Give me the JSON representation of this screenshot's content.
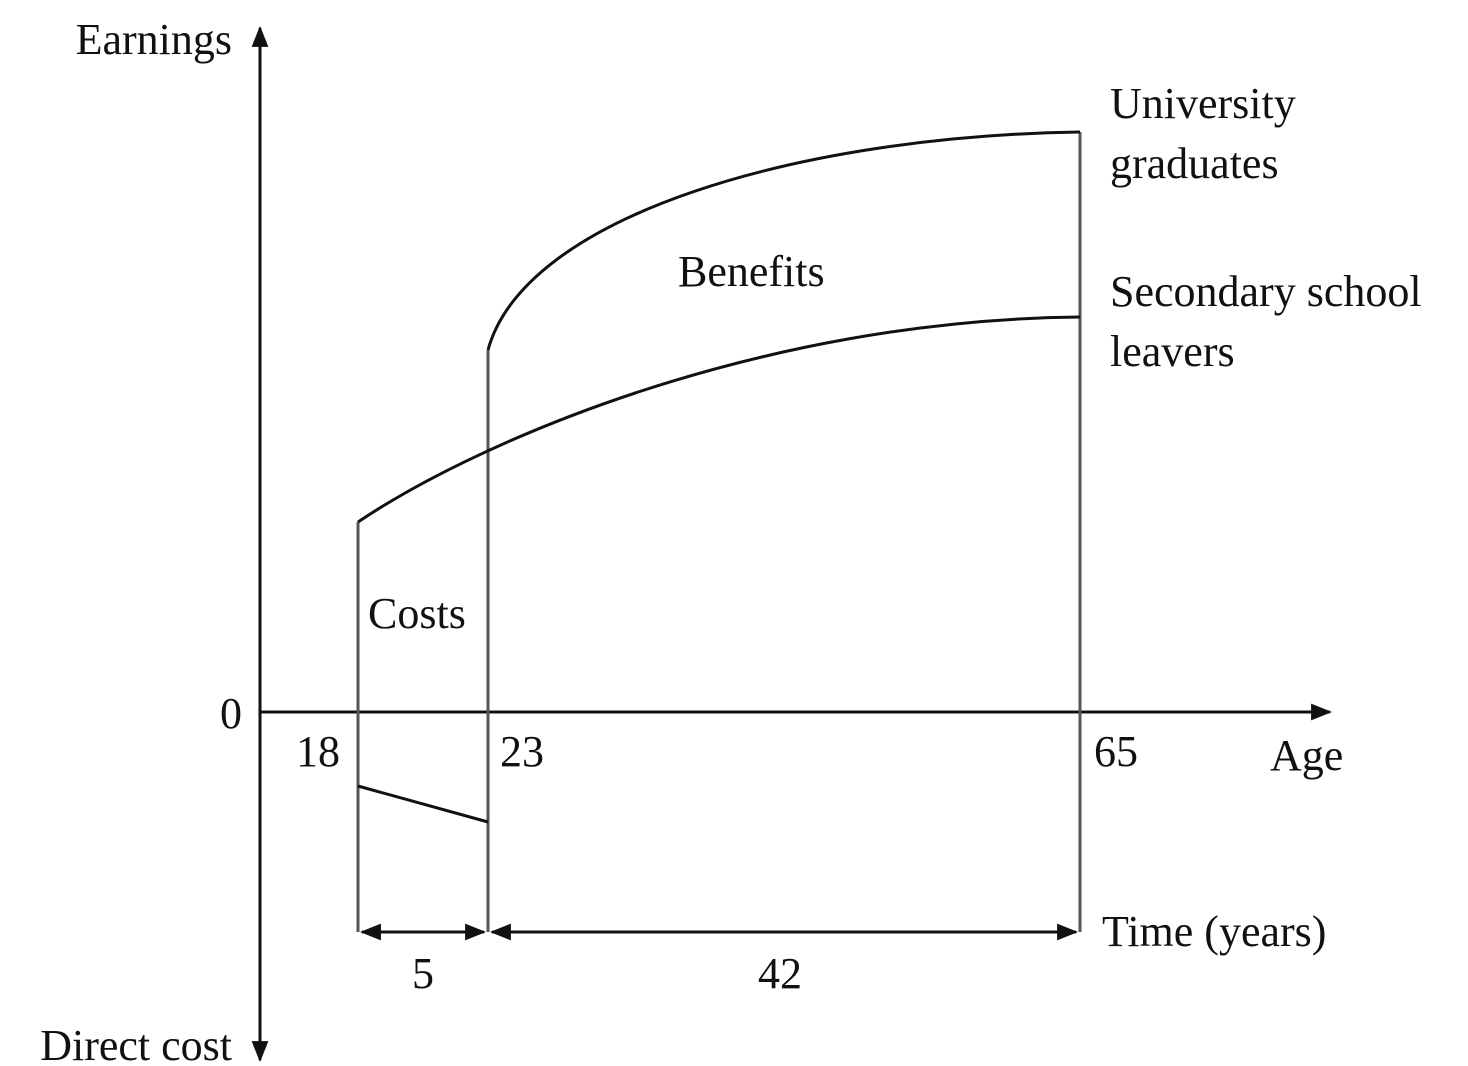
{
  "axes": {
    "y_top": "Earnings",
    "y_bottom": "Direct cost",
    "origin": "0",
    "x": "Age"
  },
  "ages": [
    "18",
    "23",
    "65"
  ],
  "curves": [
    {
      "lines": [
        "University",
        "graduates"
      ]
    },
    {
      "lines": [
        "Secondary school",
        "leavers"
      ]
    }
  ],
  "regions": {
    "benefits": "Benefits",
    "costs": "Costs"
  },
  "time": {
    "label": "Time (years)",
    "spans": [
      "5",
      "42"
    ]
  }
}
